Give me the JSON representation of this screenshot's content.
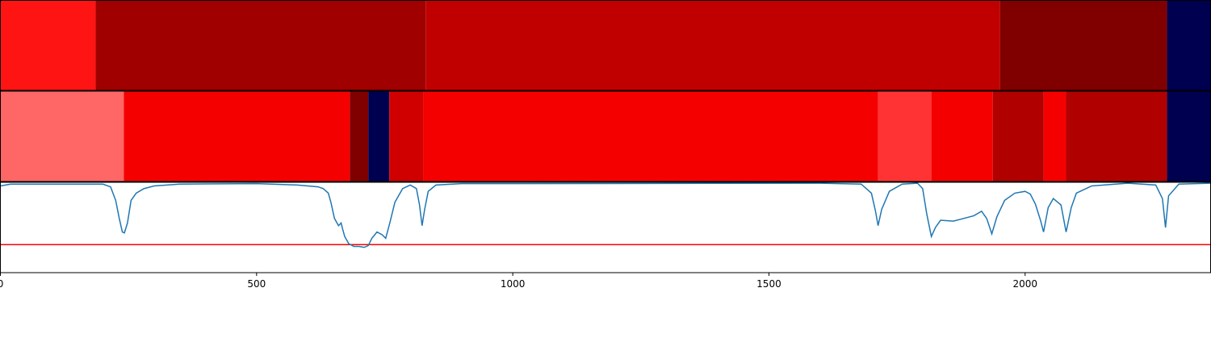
{
  "chart_data": [
    {
      "type": "segments",
      "segments": [
        {
          "start": 0,
          "end": 186,
          "color": "#ff1414"
        },
        {
          "start": 186,
          "end": 830,
          "color": "#a00000"
        },
        {
          "start": 830,
          "end": 1951,
          "color": "#c00000"
        },
        {
          "start": 1951,
          "end": 2277,
          "color": "#800000"
        },
        {
          "start": 2277,
          "end": 2362,
          "color": "#000050"
        }
      ],
      "xlim": [
        0,
        2362
      ]
    },
    {
      "type": "segments",
      "segments": [
        {
          "start": 0,
          "end": 241,
          "color": "#ff6666"
        },
        {
          "start": 241,
          "end": 682,
          "color": "#f50000"
        },
        {
          "start": 682,
          "end": 718,
          "color": "#800000"
        },
        {
          "start": 718,
          "end": 759,
          "color": "#000050"
        },
        {
          "start": 759,
          "end": 825,
          "color": "#d00000"
        },
        {
          "start": 825,
          "end": 1713,
          "color": "#f50000"
        },
        {
          "start": 1713,
          "end": 1817,
          "color": "#ff3333"
        },
        {
          "start": 1817,
          "end": 1937,
          "color": "#f50000"
        },
        {
          "start": 1937,
          "end": 2036,
          "color": "#b00000"
        },
        {
          "start": 2036,
          "end": 2080,
          "color": "#f50000"
        },
        {
          "start": 2080,
          "end": 2277,
          "color": "#b00000"
        },
        {
          "start": 2277,
          "end": 2362,
          "color": "#000050"
        }
      ],
      "xlim": [
        0,
        2362
      ]
    },
    {
      "type": "line",
      "color": "#1f77b4",
      "hline": 0.31,
      "hline_color": "#ff0000",
      "x": [
        0,
        20,
        200,
        215,
        225,
        232,
        238,
        242,
        248,
        255,
        265,
        280,
        300,
        350,
        500,
        580,
        600,
        620,
        630,
        640,
        645,
        652,
        660,
        665,
        668,
        672,
        680,
        690,
        700,
        710,
        718,
        725,
        735,
        745,
        752,
        760,
        770,
        785,
        800,
        812,
        818,
        823,
        828,
        835,
        850,
        900,
        1600,
        1680,
        1700,
        1708,
        1713,
        1720,
        1735,
        1760,
        1790,
        1800,
        1808,
        1817,
        1825,
        1835,
        1860,
        1880,
        1900,
        1915,
        1925,
        1935,
        1945,
        1960,
        1980,
        2000,
        2010,
        2020,
        2030,
        2036,
        2045,
        2055,
        2070,
        2080,
        2090,
        2100,
        2130,
        2200,
        2255,
        2268,
        2274,
        2280,
        2300,
        2362
      ],
      "values": [
        0.96,
        0.98,
        0.98,
        0.95,
        0.8,
        0.6,
        0.45,
        0.44,
        0.55,
        0.8,
        0.88,
        0.93,
        0.96,
        0.98,
        0.985,
        0.97,
        0.96,
        0.95,
        0.93,
        0.88,
        0.78,
        0.6,
        0.52,
        0.55,
        0.48,
        0.4,
        0.32,
        0.29,
        0.29,
        0.28,
        0.3,
        0.38,
        0.45,
        0.42,
        0.38,
        0.55,
        0.78,
        0.93,
        0.97,
        0.93,
        0.75,
        0.52,
        0.7,
        0.9,
        0.97,
        0.985,
        0.99,
        0.98,
        0.88,
        0.68,
        0.52,
        0.7,
        0.9,
        0.98,
        0.99,
        0.93,
        0.65,
        0.4,
        0.5,
        0.58,
        0.57,
        0.6,
        0.63,
        0.68,
        0.6,
        0.43,
        0.62,
        0.8,
        0.88,
        0.9,
        0.87,
        0.76,
        0.58,
        0.45,
        0.72,
        0.82,
        0.75,
        0.45,
        0.72,
        0.88,
        0.96,
        0.99,
        0.97,
        0.82,
        0.5,
        0.85,
        0.98,
        0.99
      ],
      "xlim": [
        0,
        2362
      ],
      "ylim": [
        0,
        1
      ],
      "xticks": [
        0,
        500,
        1000,
        1500,
        2000
      ]
    }
  ]
}
